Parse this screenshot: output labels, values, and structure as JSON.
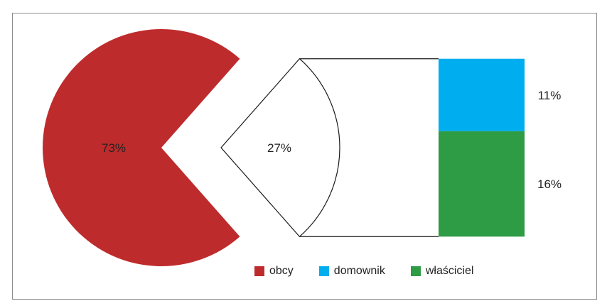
{
  "chart_data": {
    "type": "bar-of-pie",
    "pie": [
      {
        "category": "obcy",
        "value": 73,
        "label": "73%",
        "color": "#BE2B2C"
      },
      {
        "category": "rest",
        "value": 27,
        "label": "27%",
        "color": "#ffffff"
      }
    ],
    "breakdown": [
      {
        "category": "domownik",
        "value": 11,
        "label": "11%",
        "color": "#00AEEF"
      },
      {
        "category": "właściciel",
        "value": 16,
        "label": "16%",
        "color": "#2E9B45"
      }
    ],
    "legend": [
      {
        "name": "obcy",
        "color": "#BE2B2C"
      },
      {
        "name": "domownik",
        "color": "#00AEEF"
      },
      {
        "name": "właściciel",
        "color": "#2E9B45"
      }
    ],
    "legend_position": "bottom"
  }
}
